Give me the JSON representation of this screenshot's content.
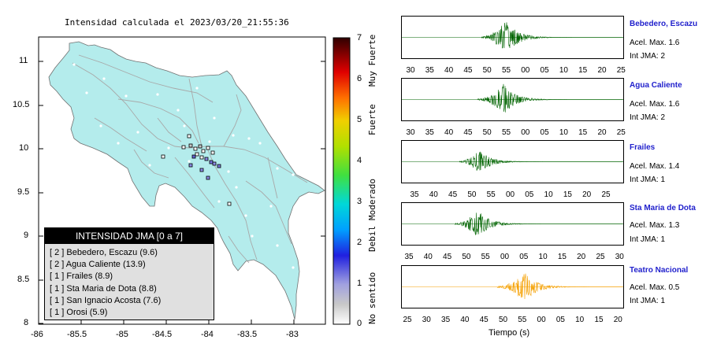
{
  "map": {
    "title": "Intensidad calculada el 2023/03/20_21:55:36",
    "y_ticks": [
      "11",
      "10.5",
      "10",
      "9.5",
      "9",
      "8.5",
      "8"
    ],
    "x_ticks": [
      "-86",
      "-85.5",
      "-85",
      "-84.5",
      "-84",
      "-83.5",
      "-83"
    ],
    "land_color": "#b4ecec",
    "legend": {
      "title": "INTENSIDAD JMA [0 a 7]",
      "items": [
        {
          "text": "[ 2 ]  Bebedero, Escazu (9.6)"
        },
        {
          "text": "[ 2 ]  Agua Caliente (13.9)"
        },
        {
          "text": "[ 1 ]  Frailes (8.9)"
        },
        {
          "text": "[ 1 ]  Sta Maria de Dota (8.8)"
        },
        {
          "text": "[ 1 ]  San Ignacio Acosta (7.6)"
        },
        {
          "text": "[ 1 ]  Orosi (5.9)"
        }
      ]
    }
  },
  "colorbar": {
    "ticks": [
      "7",
      "6",
      "5",
      "4",
      "3",
      "2",
      "1",
      "0"
    ],
    "labels": [
      "Muy Fuerte",
      "Fuerte",
      "Moderado",
      "Debil",
      "No sentido"
    ]
  },
  "waveforms": {
    "xlabel": "Tiempo (s)",
    "stations": [
      {
        "name": "Bebedero, Escazu",
        "acel": "Acel. Max. 1.6",
        "int": "Int JMA: 2",
        "color": "#006400",
        "ticks": [
          "30",
          "35",
          "40",
          "45",
          "50",
          "55",
          "00",
          "05",
          "10",
          "15",
          "20",
          "25"
        ]
      },
      {
        "name": "Agua Caliente",
        "acel": "Acel. Max. 1.6",
        "int": "Int JMA: 2",
        "color": "#006400",
        "ticks": [
          "30",
          "35",
          "40",
          "45",
          "50",
          "55",
          "00",
          "05",
          "10",
          "15",
          "20",
          "25"
        ]
      },
      {
        "name": "Frailes",
        "acel": "Acel. Max. 1.4",
        "int": "Int JMA: 1",
        "color": "#006400",
        "ticks": [
          "35",
          "40",
          "45",
          "50",
          "55",
          "00",
          "05",
          "10",
          "15",
          "20",
          "25"
        ]
      },
      {
        "name": "Sta Maria de Dota",
        "acel": "Acel. Max. 1.3",
        "int": "Int JMA: 1",
        "color": "#006400",
        "ticks": [
          "35",
          "40",
          "45",
          "50",
          "55",
          "00",
          "05",
          "10",
          "15",
          "20",
          "25",
          "30"
        ]
      },
      {
        "name": "Teatro Nacional",
        "acel": "Acel. Max. 0.5",
        "int": "Int JMA: 1",
        "color": "#f5a000",
        "ticks": [
          "25",
          "30",
          "35",
          "40",
          "45",
          "50",
          "55",
          "00",
          "05",
          "10",
          "15",
          "20"
        ]
      }
    ]
  }
}
